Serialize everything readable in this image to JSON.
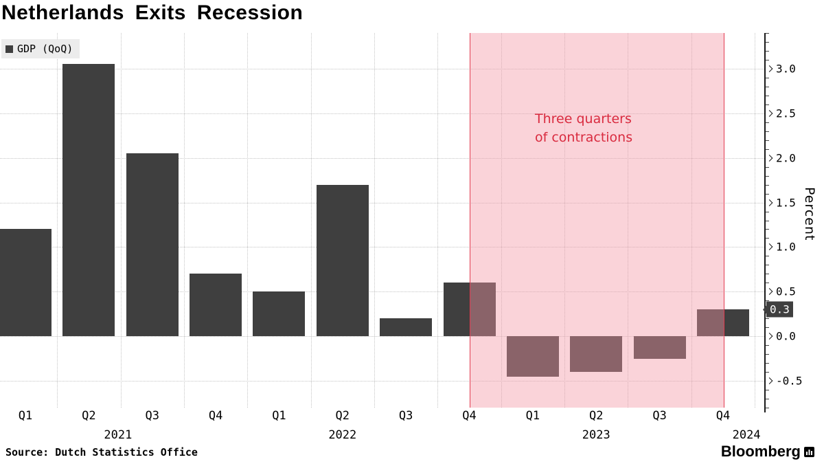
{
  "title": "Netherlands Exits Recession",
  "legend": {
    "label": "GDP (QoQ)"
  },
  "annotation": {
    "line1": "Three quarters",
    "line2": "of contractions"
  },
  "value_badge": {
    "label": "0.3",
    "value": 0.3
  },
  "axis": {
    "y_label": "Percent"
  },
  "x_axis": {
    "quarter_labels": [
      "Q1",
      "Q2",
      "Q3",
      "Q4",
      "Q1",
      "Q2",
      "Q3",
      "Q4",
      "Q1",
      "Q2",
      "Q3",
      "Q4"
    ],
    "year_labels": [
      "2021",
      "2022",
      "2023",
      "2024"
    ]
  },
  "source": "Source: Dutch Statistics Office",
  "brand": "Bloomberg",
  "colors": {
    "bar": "#3f3f3f",
    "band_fill": "rgba(244,150,165,0.42)",
    "band_border": "#e23b50",
    "annotation": "#d92b3f",
    "grid": "#c4c4c4"
  },
  "chart_data": {
    "type": "bar",
    "series_name": "GDP (QoQ)",
    "categories": [
      "2021 Q1",
      "2021 Q2",
      "2021 Q3",
      "2021 Q4",
      "2022 Q1",
      "2022 Q2",
      "2022 Q3",
      "2022 Q4",
      "2023 Q1",
      "2023 Q2",
      "2023 Q3",
      "2023 Q4"
    ],
    "values": [
      1.2,
      3.05,
      2.05,
      0.7,
      0.5,
      1.7,
      0.2,
      0.6,
      -0.45,
      -0.4,
      -0.25,
      0.3
    ],
    "title": "Netherlands Exits Recession",
    "xlabel": "",
    "ylabel": "Percent",
    "ylim": [
      -0.8,
      3.4
    ],
    "yticks": [
      3.0,
      2.5,
      2.0,
      1.5,
      1.0,
      0.5,
      0.0,
      -0.5
    ],
    "grid": "dotted",
    "legend_position": "top-left",
    "highlight_band": {
      "from_category": "2022 Q4",
      "to_category": "2023 Q4",
      "label": "Three quarters of contractions"
    }
  }
}
